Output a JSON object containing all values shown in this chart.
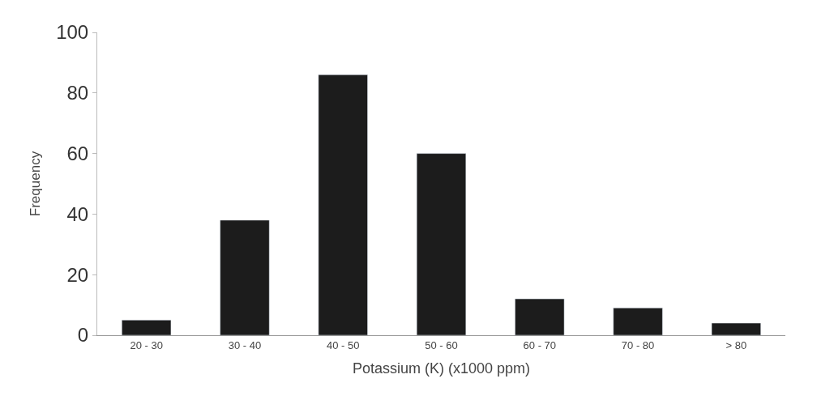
{
  "chart_data": {
    "type": "bar",
    "xlabel": "Potassium (K) (x1000 ppm)",
    "ylabel": "Frequency",
    "categories": [
      "20 - 30",
      "30 - 40",
      "40 - 50",
      "50 - 60",
      "60 - 70",
      "70 - 80",
      "> 80"
    ],
    "values": [
      5,
      38,
      86,
      60,
      12,
      9,
      4
    ],
    "color": "#1c1c1c",
    "ylim": [
      0,
      100
    ],
    "yticks": [
      0,
      20,
      40,
      60,
      80,
      100
    ]
  }
}
